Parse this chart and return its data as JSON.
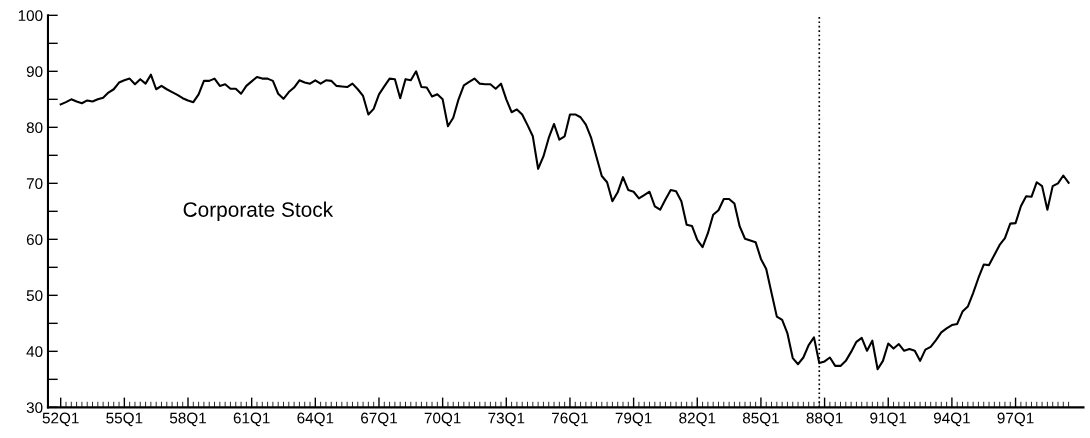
{
  "chart_data": {
    "type": "line",
    "annotations": [
      "Corporate Stock"
    ],
    "categories": [
      "52Q1",
      null,
      null,
      null,
      null,
      null,
      null,
      null,
      null,
      null,
      null,
      null,
      "55Q1",
      null,
      null,
      null,
      null,
      null,
      null,
      null,
      null,
      null,
      null,
      null,
      "58Q1",
      null,
      null,
      null,
      null,
      null,
      null,
      null,
      null,
      null,
      null,
      null,
      "61Q1",
      null,
      null,
      null,
      null,
      null,
      null,
      null,
      null,
      null,
      null,
      null,
      "64Q1",
      null,
      null,
      null,
      null,
      null,
      null,
      null,
      null,
      null,
      null,
      null,
      "67Q1",
      null,
      null,
      null,
      null,
      null,
      null,
      null,
      null,
      null,
      null,
      null,
      "70Q1",
      null,
      null,
      null,
      null,
      null,
      null,
      null,
      null,
      null,
      null,
      null,
      "73Q1",
      null,
      null,
      null,
      null,
      null,
      null,
      null,
      null,
      null,
      null,
      null,
      "76Q1",
      null,
      null,
      null,
      null,
      null,
      null,
      null,
      null,
      null,
      null,
      null,
      "79Q1",
      null,
      null,
      null,
      null,
      null,
      null,
      null,
      null,
      null,
      null,
      null,
      "82Q1",
      null,
      null,
      null,
      null,
      null,
      null,
      null,
      null,
      null,
      null,
      null,
      "85Q1",
      null,
      null,
      null,
      null,
      null,
      null,
      null,
      null,
      null,
      null,
      null,
      "88Q1",
      null,
      null,
      null,
      null,
      null,
      null,
      null,
      null,
      null,
      null,
      null,
      "91Q1",
      null,
      null,
      null,
      null,
      null,
      null,
      null,
      null,
      null,
      null,
      null,
      "94Q1",
      null,
      null,
      null,
      null,
      null,
      null,
      null,
      null,
      null,
      null,
      null,
      "97Q1",
      null,
      null,
      null,
      null,
      null,
      null,
      null,
      null,
      null,
      null
    ],
    "ylim": [
      30,
      100
    ],
    "yticks": [
      30,
      {
        "value": 35,
        "label": null
      },
      40,
      {
        "value": 45,
        "label": null
      },
      50,
      {
        "value": 55,
        "label": null
      },
      60,
      {
        "value": 65,
        "label": null
      },
      70,
      {
        "value": 75,
        "label": null
      },
      80,
      {
        "value": 85,
        "label": null
      },
      90,
      {
        "value": 95,
        "label": null
      },
      100
    ],
    "grid": false,
    "legend": false,
    "marker": "none",
    "line_style": "solid",
    "series": [
      {
        "color": "#000000",
        "values": [
          84.1,
          84.5,
          85.0,
          84.6,
          84.3,
          84.8,
          84.6,
          85.0,
          85.3,
          86.2,
          86.8,
          88.0,
          88.4,
          88.7,
          87.7,
          88.6,
          87.8,
          89.4,
          86.8,
          87.4,
          86.8,
          86.3,
          85.8,
          85.2,
          84.8,
          84.5,
          85.9,
          88.3,
          88.3,
          88.7,
          87.4,
          87.7,
          86.9,
          86.9,
          86.0,
          87.4,
          88.2,
          89.0,
          88.7,
          88.7,
          88.3,
          86.0,
          85.1,
          86.3,
          87.1,
          88.4,
          88.0,
          87.8,
          88.4,
          87.8,
          88.4,
          88.3,
          87.4,
          87.3,
          87.2,
          87.8,
          86.8,
          85.6,
          82.3,
          83.3,
          85.9,
          87.3,
          88.7,
          88.6,
          85.2,
          88.6,
          88.4,
          90.0,
          87.2,
          87.1,
          85.5,
          85.9,
          85.0,
          80.2,
          81.7,
          85.0,
          87.5,
          88.1,
          88.7,
          87.8,
          87.7,
          87.7,
          86.9,
          87.8,
          85.0,
          82.7,
          83.2,
          82.3,
          80.4,
          78.4,
          72.6,
          74.8,
          78.1,
          80.6,
          77.8,
          78.4,
          82.3,
          82.3,
          81.8,
          80.5,
          78.1,
          74.7,
          71.3,
          70.2,
          66.8,
          68.4,
          71.1,
          68.8,
          68.5,
          67.3,
          67.9,
          68.5,
          65.9,
          65.3,
          67.1,
          68.8,
          68.6,
          66.8,
          62.6,
          62.4,
          59.9,
          58.6,
          61.1,
          64.4,
          65.2,
          67.2,
          67.2,
          66.4,
          62.3,
          60.1,
          59.8,
          59.5,
          56.5,
          54.7,
          50.4,
          46.2,
          45.6,
          43.2,
          38.8,
          37.7,
          38.9,
          41.1,
          42.5,
          37.9,
          38.2,
          38.9,
          37.4,
          37.4,
          38.3,
          39.9,
          41.7,
          42.4,
          40.1,
          41.9,
          36.8,
          38.3,
          41.4,
          40.5,
          41.3,
          40.1,
          40.4,
          40.1,
          38.3,
          40.3,
          40.8,
          42.0,
          43.4,
          44.1,
          44.7,
          44.9,
          47.1,
          48.0,
          50.4,
          53.1,
          55.5,
          55.4,
          57.2,
          59.0,
          60.2,
          62.8,
          62.9,
          65.9,
          67.7,
          67.6,
          70.2,
          69.5,
          65.3,
          69.5,
          70.0,
          71.4,
          70.1
        ]
      }
    ]
  }
}
